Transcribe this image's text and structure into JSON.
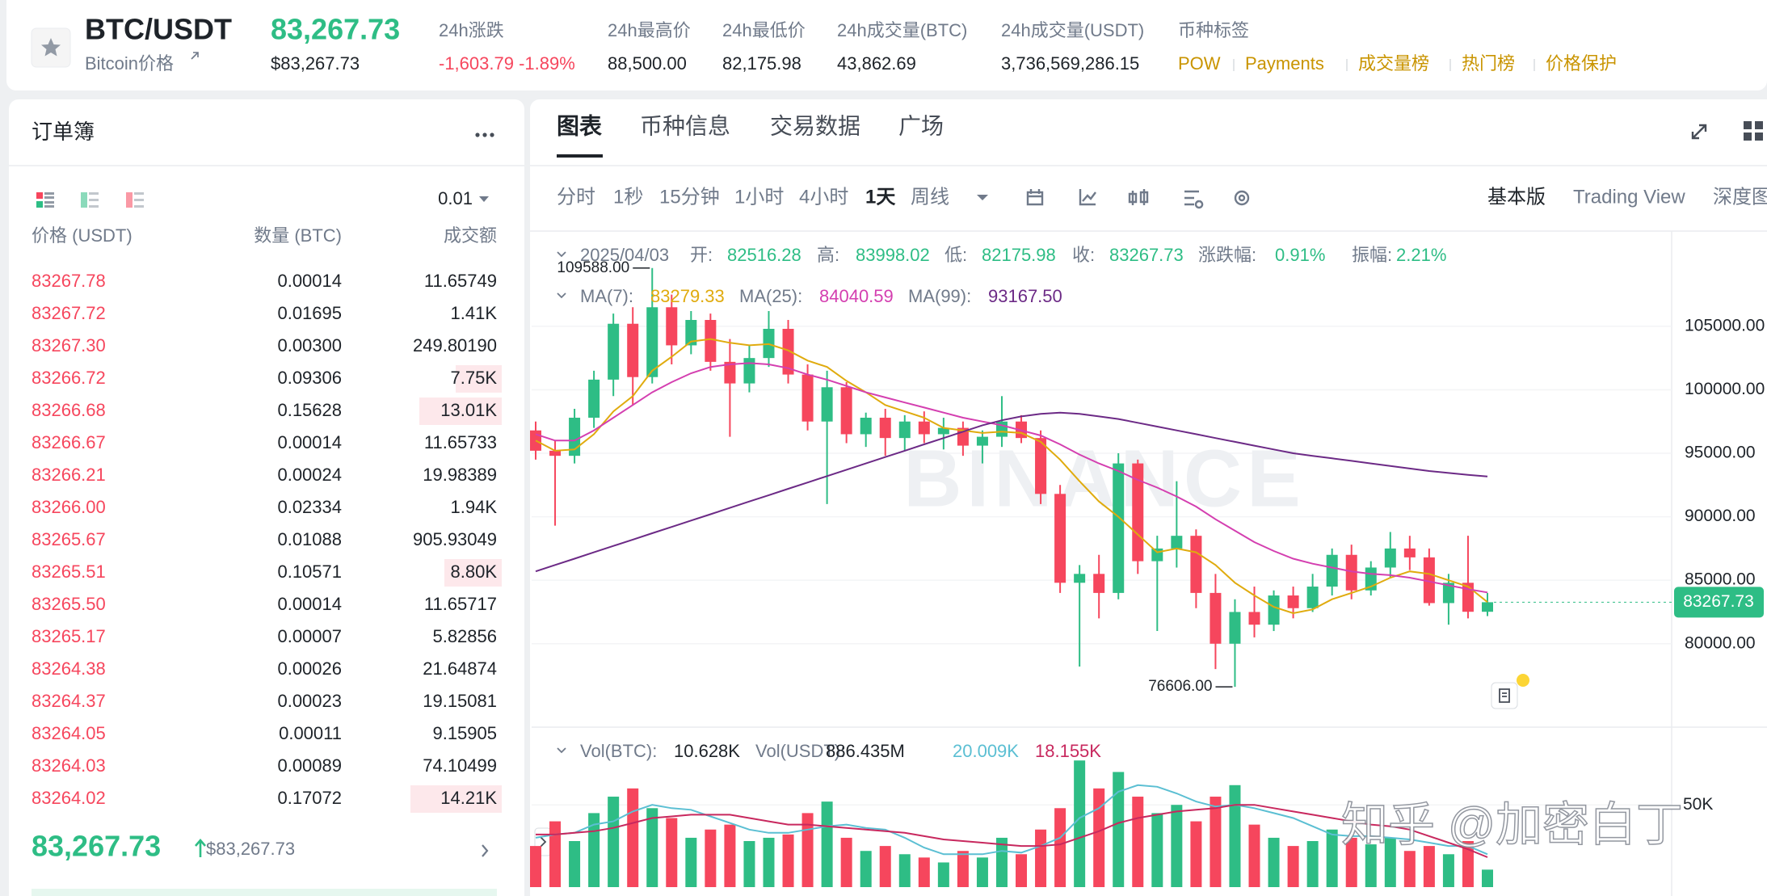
{
  "header": {
    "symbol": "BTC/USDT",
    "subtitle": "Bitcoin价格",
    "price": "83,267.73",
    "price_usd": "$83,267.73",
    "stats": [
      {
        "label": "24h涨跌",
        "value": "-1,603.79 -1.89%"
      },
      {
        "label": "24h最高价",
        "value": "88,500.00"
      },
      {
        "label": "24h最低价",
        "value": "82,175.98"
      },
      {
        "label": "24h成交量(BTC)",
        "value": "43,862.69"
      },
      {
        "label": "24h成交量(USDT)",
        "value": "3,736,569,286.15"
      }
    ],
    "tags_label": "币种标签",
    "tags": [
      "POW",
      "Payments",
      "成交量榜",
      "热门榜",
      "价格保护"
    ]
  },
  "order_book": {
    "title": "订单簿",
    "precision": "0.01",
    "columns": [
      "价格 (USDT)",
      "数量 (BTC)",
      "成交额"
    ],
    "rows": [
      [
        "83267.78",
        "0.00014",
        "11.65749"
      ],
      [
        "83267.72",
        "0.01695",
        "1.41K"
      ],
      [
        "83267.30",
        "0.00300",
        "249.80190"
      ],
      [
        "83266.72",
        "0.09306",
        "7.75K"
      ],
      [
        "83266.68",
        "0.15628",
        "13.01K"
      ],
      [
        "83266.67",
        "0.00014",
        "11.65733"
      ],
      [
        "83266.21",
        "0.00024",
        "19.98389"
      ],
      [
        "83266.00",
        "0.02334",
        "1.94K"
      ],
      [
        "83265.67",
        "0.01088",
        "905.93049"
      ],
      [
        "83265.51",
        "0.10571",
        "8.80K"
      ],
      [
        "83265.50",
        "0.00014",
        "11.65717"
      ],
      [
        "83265.17",
        "0.00007",
        "5.82856"
      ],
      [
        "83264.38",
        "0.00026",
        "21.64874"
      ],
      [
        "83264.37",
        "0.00023",
        "19.15081"
      ],
      [
        "83264.05",
        "0.00011",
        "9.15905"
      ],
      [
        "83264.03",
        "0.00089",
        "74.10499"
      ],
      [
        "83264.02",
        "0.17072",
        "14.21K"
      ]
    ],
    "last_price": "83,267.73",
    "last_price_usd": "$83,267.73"
  },
  "chart": {
    "tabs": [
      "图表",
      "币种信息",
      "交易数据",
      "广场"
    ],
    "intervals": [
      "分时",
      "1秒",
      "15分钟",
      "1小时",
      "4小时",
      "1天",
      "周线"
    ],
    "views": [
      "基本版",
      "Trading View",
      "深度图"
    ],
    "info": {
      "date": "2025/04/03",
      "fields": [
        {
          "label": "开:",
          "value": "82516.28"
        },
        {
          "label": "高:",
          "value": "83998.02"
        },
        {
          "label": "低:",
          "value": "82175.98"
        },
        {
          "label": "收:",
          "value": "83267.73"
        },
        {
          "label": "涨跌幅:",
          "value": "0.91%"
        },
        {
          "label": "振幅:",
          "value": "2.21%"
        }
      ]
    },
    "type": "candlestick",
    "up_color": "#2ebd85",
    "down_color": "#f6465d",
    "ylim": [
      73430,
      112500
    ],
    "yticks": [
      {
        "value": 80000,
        "label": "80000.00"
      },
      {
        "value": 85000,
        "label": "85000.00"
      },
      {
        "value": 90000,
        "label": "90000.00"
      },
      {
        "value": 95000,
        "label": "95000.00"
      },
      {
        "value": 100000,
        "label": "100000.00"
      },
      {
        "value": 105000,
        "label": "105000.00"
      }
    ],
    "grid": true,
    "candles": [
      [
        96800,
        97500,
        94500,
        95200
      ],
      [
        95200,
        96000,
        89300,
        94800
      ],
      [
        94800,
        98500,
        94200,
        97800
      ],
      [
        97800,
        101500,
        97000,
        100800
      ],
      [
        100800,
        106000,
        99500,
        105200
      ],
      [
        105200,
        106500,
        98800,
        101000
      ],
      [
        101000,
        109588,
        100500,
        106500
      ],
      [
        106500,
        107500,
        102000,
        103500
      ],
      [
        103500,
        106200,
        102800,
        105500
      ],
      [
        105500,
        106000,
        101500,
        102200
      ],
      [
        102200,
        104000,
        96300,
        100500
      ],
      [
        100500,
        103500,
        99800,
        102500
      ],
      [
        102500,
        106200,
        101800,
        104800
      ],
      [
        104800,
        105500,
        100500,
        101200
      ],
      [
        101200,
        102000,
        96800,
        97500
      ],
      [
        97500,
        101500,
        91000,
        100200
      ],
      [
        100200,
        100600,
        95800,
        96500
      ],
      [
        96500,
        98200,
        95500,
        97800
      ],
      [
        97800,
        98500,
        94800,
        96200
      ],
      [
        96200,
        98000,
        95200,
        97500
      ],
      [
        97500,
        98300,
        95800,
        96500
      ],
      [
        96500,
        97800,
        95300,
        97000
      ],
      [
        97000,
        97500,
        94800,
        95600
      ],
      [
        95600,
        96800,
        94200,
        96300
      ],
      [
        96300,
        99500,
        95500,
        97500
      ],
      [
        97500,
        98000,
        95800,
        96200
      ],
      [
        96200,
        96800,
        91000,
        91800
      ],
      [
        91800,
        92500,
        84000,
        84800
      ],
      [
        84800,
        86200,
        78200,
        85500
      ],
      [
        85500,
        87000,
        82000,
        84000
      ],
      [
        84000,
        95000,
        83500,
        94200
      ],
      [
        94200,
        94500,
        85500,
        86500
      ],
      [
        86500,
        88500,
        81000,
        87500
      ],
      [
        87500,
        92800,
        86000,
        88500
      ],
      [
        88500,
        89000,
        82800,
        84000
      ],
      [
        84000,
        85500,
        78000,
        80000
      ],
      [
        80000,
        83500,
        76606,
        82500
      ],
      [
        82500,
        84500,
        80500,
        81500
      ],
      [
        81500,
        84200,
        81000,
        83800
      ],
      [
        83800,
        84500,
        82000,
        82800
      ],
      [
        82800,
        85500,
        82500,
        84500
      ],
      [
        84500,
        87500,
        83800,
        87000
      ],
      [
        87000,
        87800,
        83500,
        84200
      ],
      [
        84200,
        86500,
        83800,
        86000
      ],
      [
        86000,
        88800,
        85200,
        87500
      ],
      [
        87500,
        88500,
        85800,
        86800
      ],
      [
        86800,
        87500,
        83000,
        83200
      ],
      [
        83200,
        85500,
        81500,
        84800
      ],
      [
        84800,
        88500,
        82000,
        82516.28
      ],
      [
        82516.28,
        83998.02,
        82175.98,
        83267.73
      ]
    ],
    "ma": [
      {
        "label": "MA(7):",
        "value": "83279.33",
        "color": "#e0ab0e",
        "values": [
          96000,
          95200,
          95300,
          96500,
          98300,
          99500,
          101500,
          102600,
          103800,
          104000,
          103700,
          103500,
          103600,
          103100,
          102300,
          101800,
          100700,
          99800,
          98800,
          98300,
          97800,
          97000,
          96800,
          96600,
          96700,
          96600,
          95900,
          94500,
          92800,
          91200,
          90000,
          88600,
          87200,
          87500,
          87200,
          86200,
          84800,
          83800,
          82900,
          82400,
          82700,
          83500,
          84000,
          84500,
          85200,
          85700,
          85500,
          85000,
          84500,
          83279.33
        ]
      },
      {
        "label": "MA(25):",
        "value": "84040.59",
        "color": "#d43fb0",
        "values": [
          96500,
          96000,
          96000,
          96800,
          97800,
          98800,
          99800,
          100600,
          101300,
          101800,
          102000,
          102100,
          102000,
          101700,
          101200,
          100800,
          100300,
          99800,
          99400,
          99000,
          98600,
          98200,
          97800,
          97500,
          97200,
          96800,
          96400,
          95700,
          94900,
          94200,
          93600,
          92900,
          92300,
          91600,
          90800,
          89800,
          88900,
          88000,
          87300,
          86700,
          86300,
          86000,
          85700,
          85500,
          85400,
          85200,
          84900,
          84600,
          84300,
          84040.59
        ]
      },
      {
        "label": "MA(99):",
        "value": "93167.50",
        "color": "#6c2a86",
        "values": [
          85700,
          86200,
          86700,
          87200,
          87700,
          88200,
          88700,
          89200,
          89700,
          90200,
          90700,
          91200,
          91700,
          92200,
          92700,
          93200,
          93700,
          94200,
          94700,
          95200,
          95700,
          96200,
          96700,
          97200,
          97600,
          97900,
          98100,
          98200,
          98100,
          97900,
          97700,
          97400,
          97100,
          96800,
          96500,
          96200,
          95900,
          95600,
          95300,
          95000,
          94800,
          94600,
          94400,
          94200,
          94000,
          93800,
          93600,
          93450,
          93300,
          93167.5
        ]
      }
    ],
    "high_label": {
      "value": 109588,
      "label": "109588.00"
    },
    "low_label": {
      "value": 76606,
      "label": "76606.00"
    },
    "last_price": {
      "value": 83267.73,
      "label": "83267.73"
    },
    "watermark": "BINANCE",
    "volume": {
      "legend": [
        {
          "label": "Vol(BTC):",
          "value": "10.628K"
        },
        {
          "label": "Vol(USDT):",
          "value": "886.435M"
        }
      ],
      "ylim": [
        0,
        84
      ],
      "yticks": [
        {
          "value": 50,
          "label": "50K"
        }
      ],
      "values": [
        25,
        40,
        28,
        45,
        55,
        60,
        48,
        42,
        30,
        35,
        38,
        28,
        30,
        32,
        45,
        52,
        30,
        22,
        25,
        20,
        18,
        15,
        22,
        18,
        30,
        20,
        35,
        48,
        77,
        60,
        70,
        55,
        45,
        50,
        40,
        55,
        62,
        38,
        30,
        25,
        28,
        35,
        30,
        26,
        30,
        22,
        25,
        20,
        28,
        10.628
      ],
      "ma": [
        {
          "label": "20.009K",
          "color": "#5bbfd3",
          "values": [
            30,
            32,
            33,
            38,
            40,
            46,
            50,
            48,
            47,
            43,
            39,
            35,
            33,
            33,
            35,
            37,
            38,
            36,
            35,
            30,
            24,
            20,
            20,
            20,
            22,
            21,
            25,
            30,
            42,
            48,
            58,
            62,
            61,
            57,
            52,
            49,
            50,
            48,
            45,
            42,
            37,
            32,
            31,
            31,
            30,
            29,
            27,
            25,
            25,
            20.009
          ]
        },
        {
          "label": "18.155K",
          "color": "#c8285e",
          "values": [
            32,
            32,
            33,
            34,
            36,
            39,
            42,
            43,
            44,
            44,
            44,
            42,
            40,
            38,
            38,
            37,
            36,
            35,
            34,
            33,
            31,
            29,
            28,
            27,
            26,
            25,
            25,
            26,
            30,
            34,
            39,
            42,
            44,
            46,
            47,
            48,
            50,
            50,
            48,
            46,
            44,
            42,
            40,
            38,
            37,
            35,
            31,
            27,
            23,
            18.155
          ]
        }
      ]
    }
  },
  "overlay_watermark": "知乎 @加密白丁"
}
